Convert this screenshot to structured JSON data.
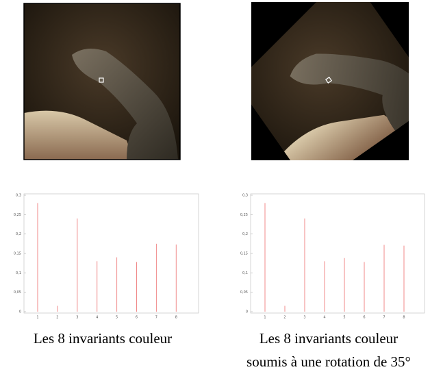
{
  "chart_data": [
    {
      "type": "bar",
      "categories": [
        "1",
        "2",
        "3",
        "4",
        "5",
        "6",
        "7",
        "8"
      ],
      "values": [
        0.28,
        0.015,
        0.24,
        0.13,
        0.14,
        0.128,
        0.175,
        0.173
      ],
      "color": "#f08a8a",
      "ylim": [
        0,
        0.3
      ],
      "yticks": [
        0,
        {
          "value": 0.05,
          "label": "0,05"
        },
        {
          "value": 0.1,
          "label": "0,1"
        },
        {
          "value": 0.15,
          "label": "0,15"
        },
        {
          "value": 0.2,
          "label": "0,2"
        },
        {
          "value": 0.25,
          "label": "0,25"
        },
        {
          "value": 0.3,
          "label": "0,3"
        }
      ],
      "caption": [
        "Les 8 invariants couleur"
      ]
    },
    {
      "type": "bar",
      "categories": [
        "1",
        "2",
        "3",
        "4",
        "5",
        "6",
        "7",
        "8"
      ],
      "values": [
        0.28,
        0.015,
        0.24,
        0.13,
        0.138,
        0.128,
        0.172,
        0.17
      ],
      "color": "#f08a8a",
      "ylim": [
        0,
        0.3
      ],
      "yticks": [
        0,
        {
          "value": 0.05,
          "label": "0,05"
        },
        {
          "value": 0.1,
          "label": "0,1"
        },
        {
          "value": 0.15,
          "label": "0,15"
        },
        {
          "value": 0.2,
          "label": "0,2"
        },
        {
          "value": 0.25,
          "label": "0,25"
        },
        {
          "value": 0.3,
          "label": "0,3"
        }
      ],
      "caption": [
        "Les 8 invariants couleur",
        "soumis à une rotation de 35°"
      ]
    }
  ]
}
